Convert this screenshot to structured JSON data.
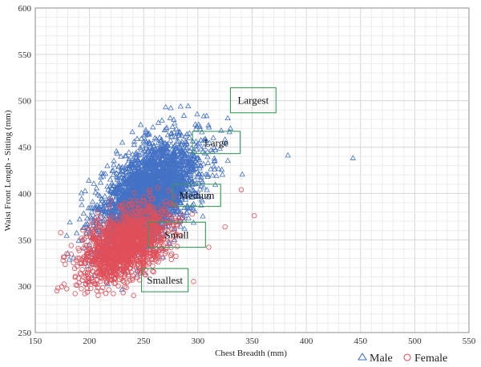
{
  "chart_data": {
    "type": "scatter",
    "title": "",
    "xlabel": "Chest Breadth (mm)",
    "ylabel": "Waist Front Length - Sitting (mm)",
    "xlim": [
      150,
      550
    ],
    "ylim": [
      250,
      600
    ],
    "xticks": [
      150,
      200,
      250,
      300,
      350,
      400,
      450,
      500,
      550
    ],
    "yticks": [
      250,
      300,
      350,
      400,
      450,
      500,
      550,
      600
    ],
    "minor_x_step": 10,
    "minor_y_step": 10,
    "grid": true,
    "legend_position": "bottom-right",
    "series": [
      {
        "name": "Male",
        "marker": "triangle",
        "color": "#4472c4",
        "sample_cloud": {
          "count": 3000,
          "center_x": 255,
          "center_y": 400,
          "sd_x": 23,
          "sd_y": 29,
          "correlation": 0.5,
          "x_range": [
            175,
            345
          ],
          "y_range": [
            295,
            495
          ]
        },
        "points": [
          [
            383,
            441
          ],
          [
            443,
            438
          ],
          [
            275,
            492
          ],
          [
            291,
            494
          ],
          [
            180,
            335
          ],
          [
            230,
            296
          ],
          [
            330,
            470
          ],
          [
            325,
            458
          ],
          [
            200,
            305
          ]
        ]
      },
      {
        "name": "Female",
        "marker": "circle",
        "color": "#e0505a",
        "sample_cloud": {
          "count": 1600,
          "center_x": 233,
          "center_y": 345,
          "sd_x": 20,
          "sd_y": 20,
          "correlation": 0.5,
          "x_range": [
            168,
            352
          ],
          "y_range": [
            290,
            410
          ]
        },
        "points": [
          [
            170,
            295
          ],
          [
            171,
            298
          ],
          [
            352,
            376
          ],
          [
            325,
            364
          ],
          [
            296,
            305
          ],
          [
            208,
            290
          ],
          [
            222,
            292
          ],
          [
            340,
            404
          ],
          [
            310,
            342
          ]
        ]
      }
    ],
    "annotations": [
      {
        "text": "Largest",
        "box": {
          "x0": 330,
          "x1": 372,
          "y0": 487,
          "y1": 514
        }
      },
      {
        "text": "Large",
        "box": {
          "x0": 295,
          "x1": 339,
          "y0": 443,
          "y1": 467
        }
      },
      {
        "text": "Medium",
        "box": {
          "x0": 277,
          "x1": 321,
          "y0": 386,
          "y1": 410
        }
      },
      {
        "text": "Small",
        "box": {
          "x0": 254,
          "x1": 307,
          "y0": 342,
          "y1": 369
        }
      },
      {
        "text": "Smallest",
        "box": {
          "x0": 248,
          "x1": 291,
          "y0": 294,
          "y1": 319
        }
      }
    ]
  }
}
